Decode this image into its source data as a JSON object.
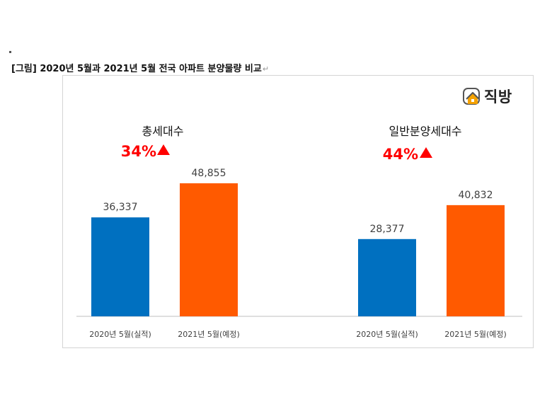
{
  "figure": {
    "caption": "[그림] 2020년 5월과 2021년 5월 전국 아파트 분양물량 비교",
    "return_mark": "↵"
  },
  "logo": {
    "text": "직방",
    "icon": "zigbang-house-icon"
  },
  "colors": {
    "series_2020": "#0070c0",
    "series_2021": "#ff5a00",
    "pct": "#ff0000",
    "axis": "#bfbfbf"
  },
  "chart_data": {
    "type": "bar",
    "groups": [
      {
        "title": "총세대수",
        "change": "34%",
        "categories": [
          "2020년 5월(실적)",
          "2021년 5월(예정)"
        ],
        "values": [
          36337,
          48855
        ],
        "value_labels": [
          "36,337",
          "48,855"
        ]
      },
      {
        "title": "일반분양세대수",
        "change": "44%",
        "categories": [
          "2020년 5월(실적)",
          "2021년 5월(예정)"
        ],
        "values": [
          28377,
          40832
        ],
        "value_labels": [
          "28,377",
          "40,832"
        ]
      }
    ],
    "ylim": [
      0,
      60000
    ],
    "grid": false,
    "legend": "none"
  }
}
